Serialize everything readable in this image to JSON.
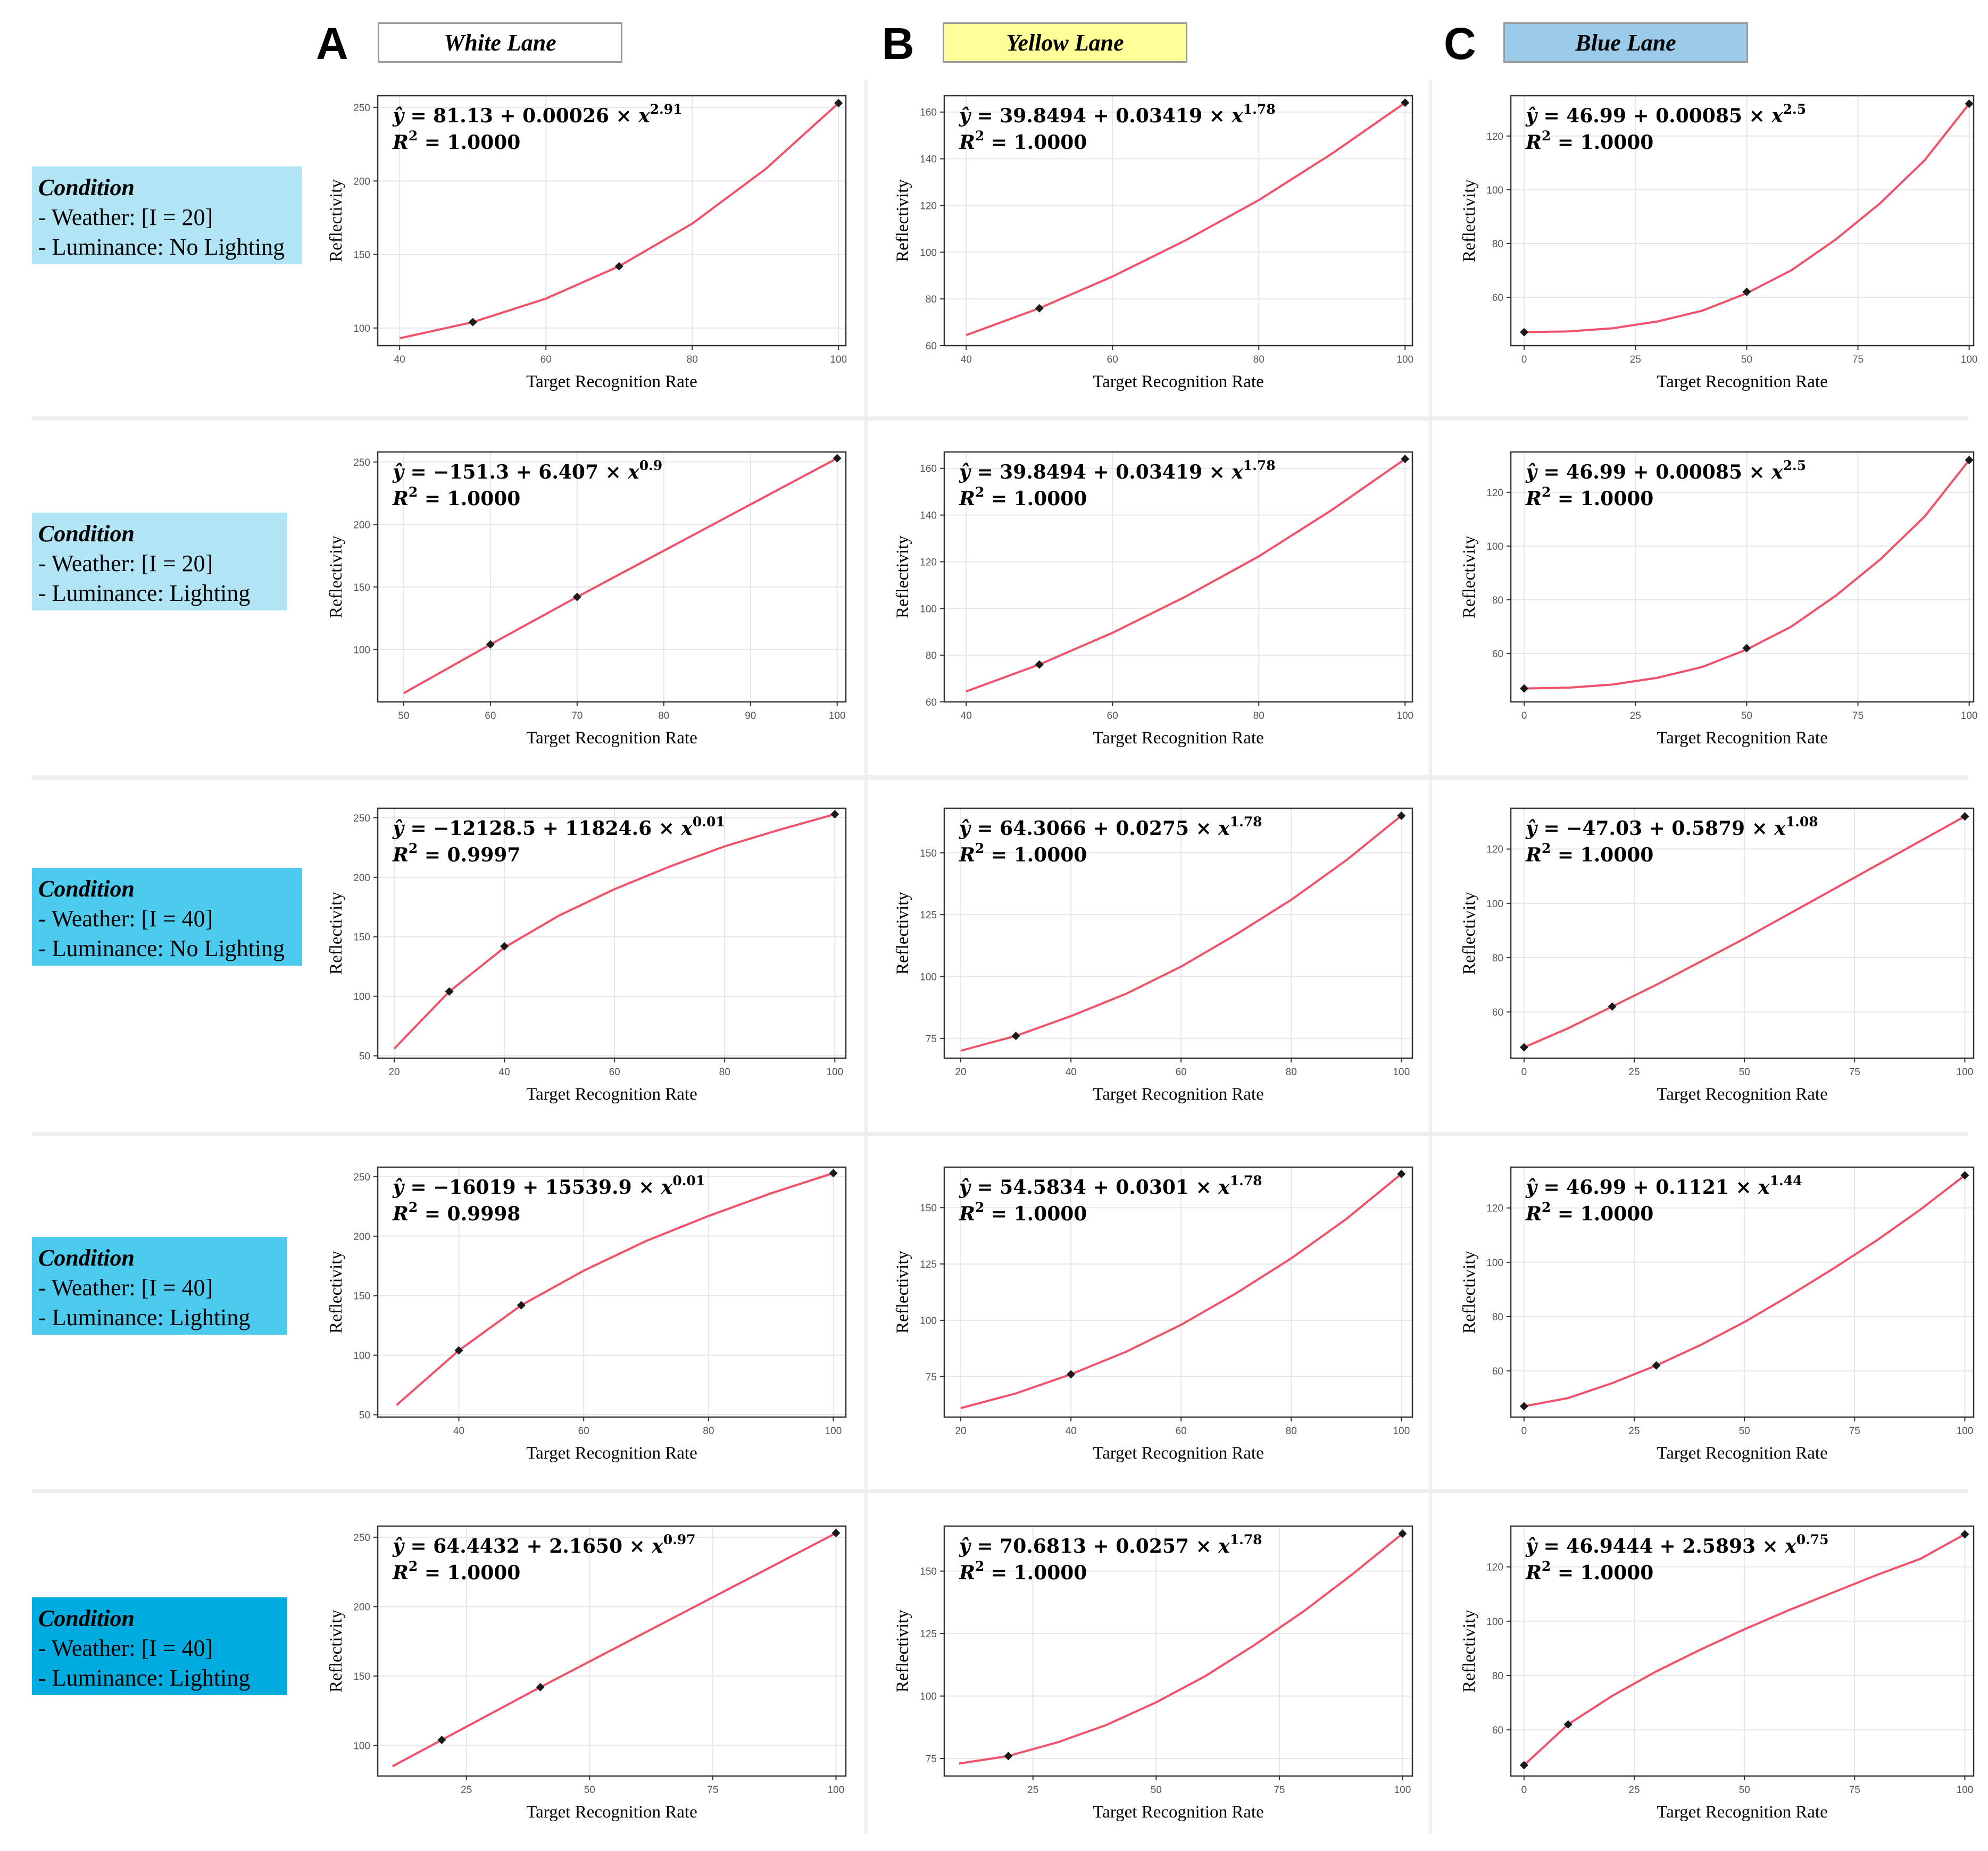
{
  "columns": [
    {
      "letter": "A",
      "title": "White Lane",
      "color": "#ffffff"
    },
    {
      "letter": "B",
      "title": "Yellow Lane",
      "color": "#ffff99"
    },
    {
      "letter": "C",
      "title": "Blue Lane",
      "color": "#9ccbe9"
    }
  ],
  "conditions": [
    {
      "title": "Condition",
      "weather": "- Weather: [I = 20]",
      "luminance": "- Luminance: No Lighting",
      "color": "#b1e4f5"
    },
    {
      "title": "Condition",
      "weather": "- Weather: [I = 20]",
      "luminance": "- Luminance: Lighting",
      "color": "#b1e4f5"
    },
    {
      "title": "Condition",
      "weather": "- Weather: [I = 40]",
      "luminance": "- Luminance: No Lighting",
      "color": "#4ccbee"
    },
    {
      "title": "Condition",
      "weather": "- Weather: [I = 40]",
      "luminance": "- Luminance: Lighting",
      "color": "#4ccbee"
    },
    {
      "title": "Condition",
      "weather": "- Weather: [I = 40]",
      "luminance": "- Luminance: Lighting",
      "color": "#00abe0"
    }
  ],
  "line_color": "#f0516b",
  "point_color": "#1a1a1a",
  "chart_data": [
    {
      "type": "line",
      "column": "White Lane",
      "equation": {
        "a": "81.13",
        "b": "0.00026",
        "p": "2.91",
        "r2": "1.0000"
      },
      "xlabel": "Target Recognition Rate",
      "ylabel": "Reflectivity",
      "x": [
        40,
        50,
        60,
        70,
        80,
        90,
        100
      ],
      "y": [
        93,
        104,
        120,
        142,
        171,
        208,
        253
      ],
      "points": [
        [
          50,
          104
        ],
        [
          70,
          142
        ],
        [
          100,
          253
        ]
      ],
      "xlim": [
        37,
        101
      ],
      "ylim": [
        88,
        258
      ],
      "xticks": [
        40,
        60,
        80,
        100
      ],
      "yticks": [
        100,
        150,
        200,
        250
      ]
    },
    {
      "type": "line",
      "column": "Yellow Lane",
      "equation": {
        "a": "39.8494",
        "b": "0.03419",
        "p": "1.78",
        "r2": "1.0000"
      },
      "xlabel": "Target Recognition Rate",
      "ylabel": "Reflectivity",
      "x": [
        40,
        50,
        60,
        70,
        80,
        90,
        100
      ],
      "y": [
        64.5,
        76,
        89.6,
        105.1,
        122.3,
        142.2,
        164
      ],
      "points": [
        [
          50,
          76
        ],
        [
          100,
          164
        ]
      ],
      "xlim": [
        37,
        101
      ],
      "ylim": [
        60,
        167
      ],
      "xticks": [
        40,
        60,
        80,
        100
      ],
      "yticks": [
        60,
        80,
        100,
        120,
        140,
        160
      ]
    },
    {
      "type": "line",
      "column": "Blue Lane",
      "equation": {
        "a": "46.99",
        "b": "0.00085",
        "p": "2.5",
        "r2": "1.0000"
      },
      "xlabel": "Target Recognition Rate",
      "ylabel": "Reflectivity",
      "x": [
        0,
        10,
        20,
        30,
        40,
        50,
        60,
        70,
        80,
        90,
        100
      ],
      "y": [
        47,
        47.3,
        48.5,
        51,
        55,
        61.5,
        70,
        81.5,
        95,
        111,
        132
      ],
      "points": [
        [
          0,
          47
        ],
        [
          50,
          62
        ],
        [
          100,
          132
        ]
      ],
      "xlim": [
        -3,
        101
      ],
      "ylim": [
        42,
        135
      ],
      "xticks": [
        0,
        25,
        50,
        75,
        100
      ],
      "yticks": [
        60,
        80,
        100,
        120
      ]
    },
    {
      "type": "line",
      "column": "White Lane",
      "equation": {
        "a": "−151.3",
        "b": "6.407",
        "p": "0.9",
        "r2": "1.0000"
      },
      "xlabel": "Target Recognition Rate",
      "ylabel": "Reflectivity",
      "x": [
        50,
        60,
        70,
        80,
        90,
        100
      ],
      "y": [
        65,
        104,
        142,
        179,
        216,
        253
      ],
      "points": [
        [
          60,
          104
        ],
        [
          70,
          142
        ],
        [
          100,
          253
        ]
      ],
      "xlim": [
        47,
        101
      ],
      "ylim": [
        58,
        258
      ],
      "xticks": [
        50,
        60,
        70,
        80,
        90,
        100
      ],
      "yticks": [
        100,
        150,
        200,
        250
      ]
    },
    {
      "type": "line",
      "column": "Yellow Lane",
      "equation": {
        "a": "39.8494",
        "b": "0.03419",
        "p": "1.78",
        "r2": "1.0000"
      },
      "xlabel": "Target Recognition Rate",
      "ylabel": "Reflectivity",
      "x": [
        40,
        50,
        60,
        70,
        80,
        90,
        100
      ],
      "y": [
        64.5,
        76,
        89.6,
        105.1,
        122.3,
        142.2,
        164
      ],
      "points": [
        [
          50,
          76
        ],
        [
          100,
          164
        ]
      ],
      "xlim": [
        37,
        101
      ],
      "ylim": [
        60,
        167
      ],
      "xticks": [
        40,
        60,
        80,
        100
      ],
      "yticks": [
        60,
        80,
        100,
        120,
        140,
        160
      ]
    },
    {
      "type": "line",
      "column": "Blue Lane",
      "equation": {
        "a": "46.99",
        "b": "0.00085",
        "p": "2.5",
        "r2": "1.0000"
      },
      "xlabel": "Target Recognition Rate",
      "ylabel": "Reflectivity",
      "x": [
        0,
        10,
        20,
        30,
        40,
        50,
        60,
        70,
        80,
        90,
        100
      ],
      "y": [
        47,
        47.3,
        48.5,
        51,
        55,
        61.5,
        70,
        81.5,
        95,
        111,
        132
      ],
      "points": [
        [
          0,
          47
        ],
        [
          50,
          62
        ],
        [
          100,
          132
        ]
      ],
      "xlim": [
        -3,
        101
      ],
      "ylim": [
        42,
        135
      ],
      "xticks": [
        0,
        25,
        50,
        75,
        100
      ],
      "yticks": [
        60,
        80,
        100,
        120
      ]
    },
    {
      "type": "line",
      "column": "White Lane",
      "equation": {
        "a": "−12128.5",
        "b": "11824.6",
        "p": "0.01",
        "r2": "0.9997"
      },
      "xlabel": "Target Recognition Rate",
      "ylabel": "Reflectivity",
      "x": [
        20,
        30,
        40,
        50,
        60,
        70,
        80,
        90,
        100
      ],
      "y": [
        56,
        104,
        141,
        168,
        190,
        209,
        226,
        240,
        253
      ],
      "points": [
        [
          30,
          104
        ],
        [
          40,
          142
        ],
        [
          100,
          253
        ]
      ],
      "xlim": [
        17,
        102
      ],
      "ylim": [
        48,
        258
      ],
      "xticks": [
        20,
        40,
        60,
        80,
        100
      ],
      "yticks": [
        50,
        100,
        150,
        200,
        250
      ]
    },
    {
      "type": "line",
      "column": "Yellow Lane",
      "equation": {
        "a": "64.3066",
        "b": "0.0275",
        "p": "1.78",
        "r2": "1.0000"
      },
      "xlabel": "Target Recognition Rate",
      "ylabel": "Reflectivity",
      "x": [
        20,
        30,
        40,
        50,
        60,
        70,
        80,
        90,
        100
      ],
      "y": [
        70,
        76,
        84,
        93,
        104,
        117,
        131,
        147,
        165
      ],
      "points": [
        [
          30,
          76
        ],
        [
          100,
          165
        ]
      ],
      "xlim": [
        17,
        102
      ],
      "ylim": [
        67,
        168
      ],
      "xticks": [
        20,
        40,
        60,
        80,
        100
      ],
      "yticks": [
        75,
        100,
        125,
        150
      ]
    },
    {
      "type": "line",
      "column": "Blue Lane",
      "equation": {
        "a": "−47.03",
        "b": "0.5879",
        "p": "1.08",
        "r2": "1.0000"
      },
      "xlabel": "Target Recognition Rate",
      "ylabel": "Reflectivity",
      "x": [
        0,
        10,
        20,
        30,
        40,
        50,
        60,
        70,
        80,
        90,
        100
      ],
      "y": [
        47,
        54,
        62,
        70,
        78.5,
        87,
        96,
        105,
        114,
        123,
        132
      ],
      "points": [
        [
          0,
          47
        ],
        [
          20,
          62
        ],
        [
          100,
          132
        ]
      ],
      "xlim": [
        -3,
        102
      ],
      "ylim": [
        43,
        135
      ],
      "xticks": [
        0,
        25,
        50,
        75,
        100
      ],
      "yticks": [
        60,
        80,
        100,
        120
      ]
    },
    {
      "type": "line",
      "column": "White Lane",
      "equation": {
        "a": "−16019",
        "b": "15539.9",
        "p": "0.01",
        "r2": "0.9998"
      },
      "xlabel": "Target Recognition Rate",
      "ylabel": "Reflectivity",
      "x": [
        30,
        40,
        50,
        60,
        70,
        80,
        90,
        100
      ],
      "y": [
        58,
        104,
        142,
        171,
        196,
        217,
        236,
        253
      ],
      "points": [
        [
          40,
          104
        ],
        [
          50,
          142
        ],
        [
          100,
          253
        ]
      ],
      "xlim": [
        27,
        102
      ],
      "ylim": [
        48,
        258
      ],
      "xticks": [
        40,
        60,
        80,
        100
      ],
      "yticks": [
        50,
        100,
        150,
        200,
        250
      ]
    },
    {
      "type": "line",
      "column": "Yellow Lane",
      "equation": {
        "a": "54.5834",
        "b": "0.0301",
        "p": "1.78",
        "r2": "1.0000"
      },
      "xlabel": "Target Recognition Rate",
      "ylabel": "Reflectivity",
      "x": [
        20,
        30,
        40,
        50,
        60,
        70,
        80,
        90,
        100
      ],
      "y": [
        61,
        67.5,
        76,
        86,
        98,
        112,
        127.5,
        145,
        165
      ],
      "points": [
        [
          40,
          76
        ],
        [
          100,
          165
        ]
      ],
      "xlim": [
        17,
        102
      ],
      "ylim": [
        57,
        168
      ],
      "xticks": [
        20,
        40,
        60,
        80,
        100
      ],
      "yticks": [
        75,
        100,
        125,
        150
      ]
    },
    {
      "type": "line",
      "column": "Blue Lane",
      "equation": {
        "a": "46.99",
        "b": "0.1121",
        "p": "1.44",
        "r2": "1.0000"
      },
      "xlabel": "Target Recognition Rate",
      "ylabel": "Reflectivity",
      "x": [
        0,
        10,
        20,
        30,
        40,
        50,
        60,
        70,
        80,
        90,
        100
      ],
      "y": [
        47,
        50,
        55.5,
        62,
        69.5,
        78,
        87.5,
        97.5,
        108,
        119.5,
        132
      ],
      "points": [
        [
          0,
          47
        ],
        [
          30,
          62
        ],
        [
          100,
          132
        ]
      ],
      "xlim": [
        -3,
        102
      ],
      "ylim": [
        43,
        135
      ],
      "xticks": [
        0,
        25,
        50,
        75,
        100
      ],
      "yticks": [
        60,
        80,
        100,
        120
      ]
    },
    {
      "type": "line",
      "column": "White Lane",
      "equation": {
        "a": "64.4432",
        "b": "2.1650",
        "p": "0.97",
        "r2": "1.0000"
      },
      "xlabel": "Target Recognition Rate",
      "ylabel": "Reflectivity",
      "x": [
        10,
        20,
        40,
        60,
        80,
        100
      ],
      "y": [
        85,
        104,
        142,
        179,
        216,
        253
      ],
      "points": [
        [
          20,
          104
        ],
        [
          40,
          142
        ],
        [
          100,
          253
        ]
      ],
      "xlim": [
        7,
        102
      ],
      "ylim": [
        78,
        258
      ],
      "xticks": [
        25,
        50,
        75,
        100
      ],
      "yticks": [
        100,
        150,
        200,
        250
      ]
    },
    {
      "type": "line",
      "column": "Yellow Lane",
      "equation": {
        "a": "70.6813",
        "b": "0.0257",
        "p": "1.78",
        "r2": "1.0000"
      },
      "xlabel": "Target Recognition Rate",
      "ylabel": "Reflectivity",
      "x": [
        10,
        20,
        30,
        40,
        50,
        60,
        70,
        80,
        90,
        100
      ],
      "y": [
        73,
        76,
        81.5,
        88.5,
        97.5,
        108,
        120.5,
        134,
        149,
        165
      ],
      "points": [
        [
          20,
          76
        ],
        [
          100,
          165
        ]
      ],
      "xlim": [
        7,
        102
      ],
      "ylim": [
        68,
        168
      ],
      "xticks": [
        25,
        50,
        75,
        100
      ],
      "yticks": [
        75,
        100,
        125,
        150
      ]
    },
    {
      "type": "line",
      "column": "Blue Lane",
      "equation": {
        "a": "46.9444",
        "b": "2.5893",
        "p": "0.75",
        "r2": "1.0000"
      },
      "xlabel": "Target Recognition Rate",
      "ylabel": "Reflectivity",
      "x": [
        0,
        10,
        20,
        30,
        40,
        50,
        60,
        70,
        80,
        90,
        100
      ],
      "y": [
        47,
        62,
        72.5,
        81.5,
        89.5,
        97,
        104,
        110.5,
        117,
        123,
        132
      ],
      "points": [
        [
          0,
          47
        ],
        [
          10,
          62
        ],
        [
          100,
          132
        ]
      ],
      "xlim": [
        -3,
        102
      ],
      "ylim": [
        43,
        135
      ],
      "xticks": [
        0,
        25,
        50,
        75,
        100
      ],
      "yticks": [
        60,
        80,
        100,
        120
      ]
    }
  ]
}
